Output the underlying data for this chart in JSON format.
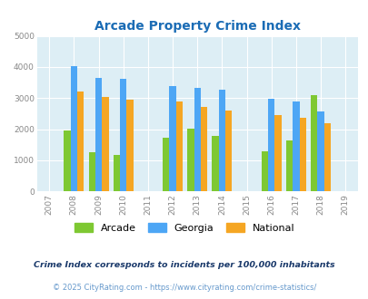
{
  "title": "Arcade Property Crime Index",
  "all_years": [
    2007,
    2008,
    2009,
    2010,
    2011,
    2012,
    2013,
    2014,
    2015,
    2016,
    2017,
    2018,
    2019
  ],
  "data_years": [
    2008,
    2009,
    2010,
    2012,
    2013,
    2014,
    2016,
    2017,
    2018
  ],
  "data": {
    "Arcade": [
      1950,
      1260,
      1180,
      1720,
      2020,
      1790,
      1300,
      1650,
      3080
    ],
    "Georgia": [
      4020,
      3660,
      3630,
      3380,
      3340,
      3270,
      2990,
      2880,
      2570
    ],
    "National": [
      3200,
      3040,
      2960,
      2880,
      2730,
      2600,
      2460,
      2360,
      2200
    ]
  },
  "bar_colors": {
    "Arcade": "#7ec832",
    "Georgia": "#4da6f5",
    "National": "#f5a623"
  },
  "ylim": [
    0,
    5000
  ],
  "yticks": [
    0,
    1000,
    2000,
    3000,
    4000,
    5000
  ],
  "plot_bg": "#ddeef5",
  "grid_color": "#ffffff",
  "legend_labels": [
    "Arcade",
    "Georgia",
    "National"
  ],
  "footnote1": "Crime Index corresponds to incidents per 100,000 inhabitants",
  "footnote2": "© 2025 CityRating.com - https://www.cityrating.com/crime-statistics/",
  "title_color": "#1b6cb5",
  "footnote1_color": "#1b3a6b",
  "footnote2_color": "#6699cc",
  "bar_width": 0.27,
  "xlim": [
    2006.5,
    2019.5
  ]
}
